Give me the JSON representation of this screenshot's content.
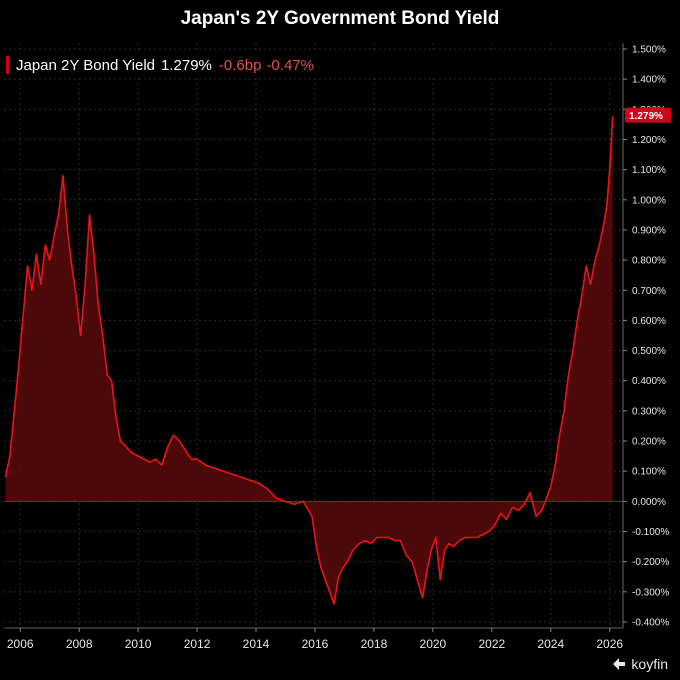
{
  "title": "Japan's 2Y Government Bond Yield",
  "legend": {
    "name": "Japan 2Y Bond Yield",
    "last": "1.279%",
    "change_bp": "-0.6bp",
    "change_pct": "-0.47%"
  },
  "last_value_label": "1.279%",
  "brand": "koyfin",
  "colors": {
    "line": "#e8141c",
    "fill": "#5a0a0a",
    "badge": "#d0021b",
    "grid": "#2a2a2a",
    "background": "#000000"
  },
  "chart_data": {
    "type": "area",
    "title": "Japan's 2Y Government Bond Yield",
    "xlabel": "",
    "ylabel": "",
    "xlim": [
      2005.45,
      2026.45
    ],
    "ylim": [
      -0.42,
      1.52
    ],
    "grid": true,
    "legend_position": "top-left",
    "x_ticks": [
      2006,
      2008,
      2010,
      2012,
      2014,
      2016,
      2018,
      2020,
      2022,
      2024,
      2026
    ],
    "x_tick_labels": [
      "2006",
      "2008",
      "2010",
      "2012",
      "2014",
      "2016",
      "2018",
      "2020",
      "2022",
      "2024",
      "2026"
    ],
    "y_ticks": [
      -0.4,
      -0.3,
      -0.2,
      -0.1,
      0,
      0.1,
      0.2,
      0.3,
      0.4,
      0.5,
      0.6,
      0.7,
      0.8,
      0.9,
      1.0,
      1.1,
      1.2,
      1.3,
      1.4,
      1.5
    ],
    "y_tick_labels": [
      "-0.400%",
      "-0.300%",
      "-0.200%",
      "-0.100%",
      "0.000%",
      "0.100%",
      "0.200%",
      "0.300%",
      "0.400%",
      "0.500%",
      "0.600%",
      "0.700%",
      "0.800%",
      "0.900%",
      "1.000%",
      "1.100%",
      "1.200%",
      "1.300%",
      "1.400%",
      "1.500%"
    ],
    "series": [
      {
        "name": "Japan 2Y Bond Yield",
        "x": [
          2005.5,
          2005.65,
          2005.8,
          2005.95,
          2006.1,
          2006.25,
          2006.4,
          2006.55,
          2006.7,
          2006.85,
          2007.0,
          2007.15,
          2007.3,
          2007.45,
          2007.6,
          2007.75,
          2007.9,
          2008.05,
          2008.2,
          2008.35,
          2008.5,
          2008.65,
          2008.8,
          2008.95,
          2009.1,
          2009.25,
          2009.4,
          2009.6,
          2009.8,
          2010.0,
          2010.2,
          2010.4,
          2010.6,
          2010.8,
          2011.0,
          2011.2,
          2011.4,
          2011.6,
          2011.8,
          2012.0,
          2012.3,
          2012.6,
          2012.9,
          2013.2,
          2013.5,
          2013.8,
          2014.1,
          2014.4,
          2014.7,
          2015.0,
          2015.3,
          2015.6,
          2015.9,
          2016.05,
          2016.2,
          2016.35,
          2016.5,
          2016.65,
          2016.8,
          2016.95,
          2017.1,
          2017.3,
          2017.5,
          2017.7,
          2017.9,
          2018.1,
          2018.3,
          2018.5,
          2018.7,
          2018.9,
          2019.1,
          2019.3,
          2019.5,
          2019.65,
          2019.8,
          2019.95,
          2020.1,
          2020.25,
          2020.4,
          2020.55,
          2020.7,
          2020.9,
          2021.1,
          2021.3,
          2021.5,
          2021.7,
          2021.9,
          2022.1,
          2022.3,
          2022.5,
          2022.7,
          2022.9,
          2023.1,
          2023.3,
          2023.5,
          2023.7,
          2023.85,
          2024.0,
          2024.15,
          2024.3,
          2024.45,
          2024.6,
          2024.75,
          2024.9,
          2025.05,
          2025.2,
          2025.35,
          2025.5,
          2025.65,
          2025.8,
          2025.9,
          2026.0,
          2026.1
        ],
        "y": [
          0.08,
          0.15,
          0.3,
          0.45,
          0.62,
          0.78,
          0.7,
          0.82,
          0.72,
          0.85,
          0.8,
          0.88,
          0.95,
          1.08,
          0.9,
          0.78,
          0.68,
          0.55,
          0.72,
          0.95,
          0.82,
          0.65,
          0.55,
          0.42,
          0.4,
          0.28,
          0.2,
          0.18,
          0.16,
          0.15,
          0.14,
          0.13,
          0.14,
          0.12,
          0.18,
          0.22,
          0.2,
          0.17,
          0.14,
          0.14,
          0.12,
          0.11,
          0.1,
          0.09,
          0.08,
          0.07,
          0.06,
          0.04,
          0.01,
          0.0,
          -0.01,
          0.0,
          -0.05,
          -0.15,
          -0.22,
          -0.26,
          -0.3,
          -0.34,
          -0.25,
          -0.22,
          -0.2,
          -0.16,
          -0.14,
          -0.13,
          -0.14,
          -0.12,
          -0.12,
          -0.12,
          -0.13,
          -0.13,
          -0.18,
          -0.2,
          -0.27,
          -0.32,
          -0.23,
          -0.16,
          -0.12,
          -0.26,
          -0.16,
          -0.14,
          -0.15,
          -0.13,
          -0.12,
          -0.12,
          -0.12,
          -0.11,
          -0.1,
          -0.08,
          -0.04,
          -0.06,
          -0.02,
          -0.03,
          -0.01,
          0.03,
          -0.05,
          -0.03,
          0.01,
          0.05,
          0.12,
          0.22,
          0.3,
          0.42,
          0.5,
          0.6,
          0.68,
          0.78,
          0.72,
          0.8,
          0.85,
          0.92,
          0.98,
          1.1,
          1.279
        ]
      }
    ]
  }
}
